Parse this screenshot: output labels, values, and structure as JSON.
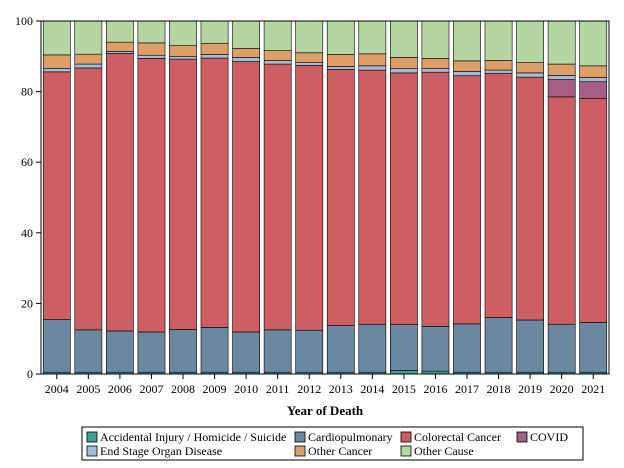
{
  "chart_data": {
    "type": "bar",
    "stacked": true,
    "title": "",
    "xlabel": "Year of Death",
    "ylabel": "",
    "ylim": [
      0,
      100
    ],
    "yticks": [
      0,
      20,
      40,
      60,
      80,
      100
    ],
    "grid": false,
    "legend_position": "bottom",
    "categories": [
      "2004",
      "2005",
      "2006",
      "2007",
      "2008",
      "2009",
      "2010",
      "2011",
      "2012",
      "2013",
      "2014",
      "2015",
      "2016",
      "2017",
      "2018",
      "2019",
      "2020",
      "2021"
    ],
    "series": [
      {
        "name": "Accidental Injury / Homicide / Suicide",
        "color": "#3fa193",
        "values": [
          0.5,
          0.5,
          0.5,
          0.5,
          0.5,
          0.5,
          0.5,
          0.5,
          0.5,
          0.5,
          0.5,
          1.0,
          0.8,
          0.5,
          0.5,
          0.5,
          0.5,
          0.5
        ]
      },
      {
        "name": "Cardiopulmonary",
        "color": "#6c87a0",
        "values": [
          14.9,
          12.0,
          11.7,
          11.4,
          12.1,
          12.7,
          11.4,
          12.0,
          11.9,
          13.2,
          13.6,
          13.0,
          12.7,
          13.7,
          15.5,
          14.8,
          13.6,
          14.1
        ]
      },
      {
        "name": "Colorectal Cancer",
        "color": "#cd5f64",
        "values": [
          70.2,
          74.2,
          78.6,
          77.5,
          76.6,
          76.3,
          76.6,
          75.3,
          75.0,
          72.6,
          72.0,
          71.3,
          72.0,
          70.3,
          69.2,
          68.8,
          64.4,
          63.4
        ]
      },
      {
        "name": "COVID",
        "color": "#a65e84",
        "values": [
          0,
          0,
          0,
          0,
          0,
          0,
          0,
          0,
          0,
          0,
          0,
          0,
          0,
          0,
          0,
          0,
          4.9,
          4.8
        ]
      },
      {
        "name": "End Stage Organ Disease",
        "color": "#a3bcd7",
        "values": [
          1.0,
          1.1,
          0.6,
          0.9,
          0.7,
          1.0,
          1.2,
          1.0,
          0.8,
          0.8,
          1.2,
          1.2,
          1.0,
          1.2,
          0.9,
          1.2,
          1.2,
          1.2
        ]
      },
      {
        "name": "Other Cancer",
        "color": "#dd9e68",
        "values": [
          3.8,
          2.8,
          2.6,
          3.5,
          3.1,
          3.2,
          2.5,
          2.8,
          2.8,
          3.4,
          3.4,
          3.2,
          2.9,
          3.0,
          2.7,
          2.9,
          3.2,
          3.3
        ]
      },
      {
        "name": "Other Cause",
        "color": "#b5d6a3",
        "values": [
          9.6,
          9.4,
          6.0,
          6.2,
          7.0,
          6.3,
          7.8,
          8.4,
          9.0,
          9.5,
          9.3,
          10.3,
          10.6,
          11.3,
          11.2,
          11.8,
          12.2,
          12.7
        ]
      }
    ]
  }
}
